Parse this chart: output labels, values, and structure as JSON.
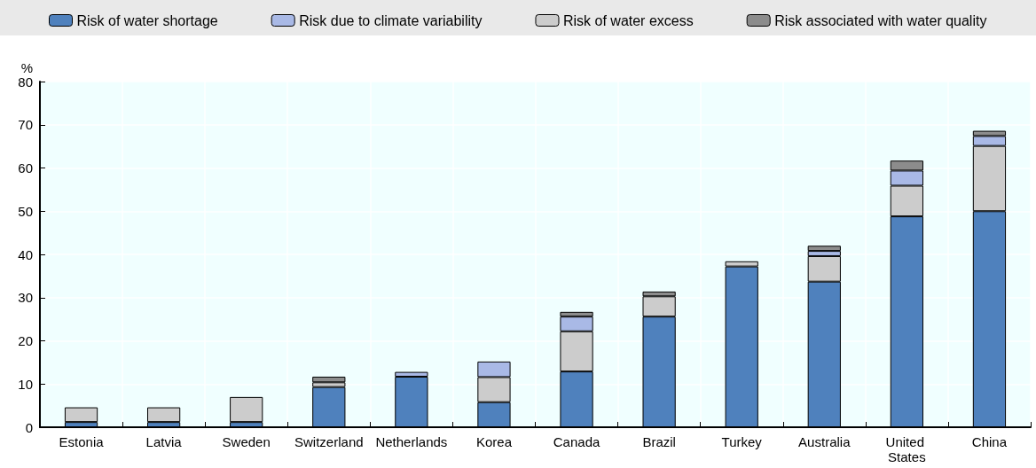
{
  "chart_data": {
    "type": "bar",
    "stacked": true,
    "ylabel": "%",
    "categories": [
      "Estonia",
      "Latvia",
      "Sweden",
      "Switzerland",
      "Netherlands",
      "Korea",
      "Canada",
      "Brazil",
      "Turkey",
      "Australia",
      "United States",
      "China"
    ],
    "series": [
      {
        "name": "Risk of water shortage",
        "color": "#4f81bd",
        "values": [
          1.2,
          1.2,
          1.2,
          9.3,
          11.7,
          5.8,
          12.9,
          25.6,
          37.2,
          33.7,
          48.8,
          50
        ]
      },
      {
        "name": "Risk of water excess",
        "color": "#cccccc",
        "values": [
          3.4,
          3.4,
          5.8,
          1.1,
          null,
          5.8,
          9.3,
          4.7,
          1.2,
          5.9,
          7.1,
          15.1
        ]
      },
      {
        "name": "Risk due to climate variability",
        "color": "#a9b9e6",
        "values": [
          null,
          null,
          null,
          null,
          1.1,
          3.6,
          3.4,
          null,
          null,
          1.2,
          3.5,
          2.3
        ]
      },
      {
        "name": "Risk associated with water quality",
        "color": "#8c8c8c",
        "values": [
          null,
          null,
          null,
          1.3,
          null,
          null,
          1.1,
          1.1,
          null,
          1.2,
          2.3,
          1.2
        ]
      }
    ],
    "ylim": [
      0,
      80
    ],
    "yticks": [
      0,
      10,
      20,
      30,
      40,
      50,
      60,
      70,
      80
    ],
    "grid": true,
    "legend": "top"
  }
}
